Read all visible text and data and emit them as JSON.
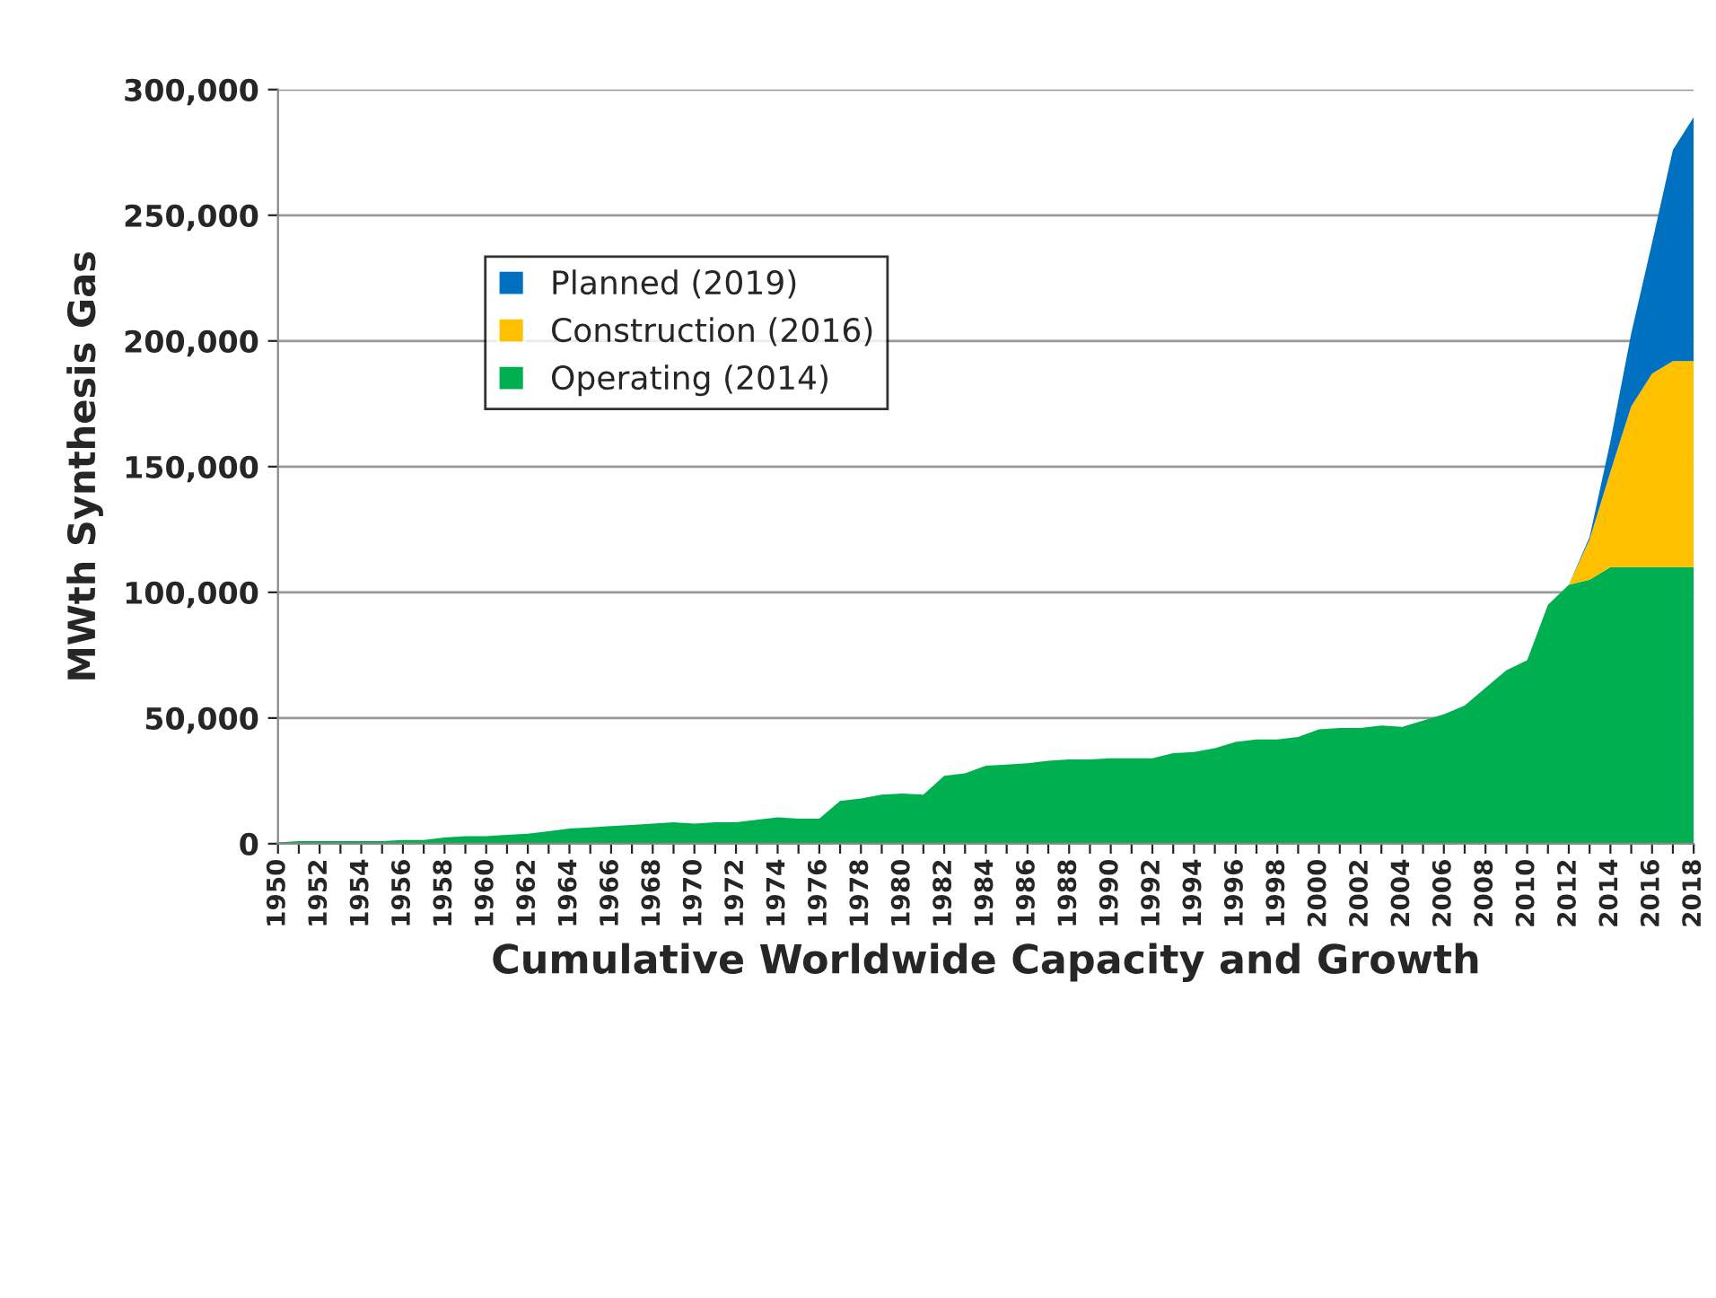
{
  "chart_data": {
    "type": "area",
    "stacked": true,
    "ylabel": "MWth Synthesis Gas",
    "xlabel": "Cumulative Worldwide Capacity and Growth",
    "categories": [
      "1950",
      null,
      "1952",
      null,
      "1954",
      null,
      "1956",
      null,
      "1958",
      null,
      "1960",
      null,
      "1962",
      null,
      "1964",
      null,
      "1966",
      null,
      "1968",
      null,
      "1970",
      null,
      "1972",
      null,
      "1974",
      null,
      "1976",
      null,
      "1978",
      null,
      "1980",
      null,
      "1982",
      null,
      "1984",
      null,
      "1986",
      null,
      "1988",
      null,
      "1990",
      null,
      "1992",
      null,
      "1994",
      null,
      "1996",
      null,
      "1998",
      null,
      "2000",
      null,
      "2002",
      null,
      "2004",
      null,
      "2006",
      null,
      "2008",
      null,
      "2010",
      null,
      "2012",
      null,
      "2014",
      null,
      "2016",
      null,
      "2018"
    ],
    "series": [
      {
        "name": "Operating (2014)",
        "color": "#00b050",
        "values": [
          500,
          1000,
          1000,
          1000,
          1000,
          1000,
          1500,
          1500,
          2500,
          3000,
          3000,
          3500,
          4000,
          5000,
          6000,
          6500,
          7000,
          7500,
          8000,
          8500,
          8000,
          8500,
          8500,
          9500,
          10500,
          10000,
          10000,
          17000,
          18000,
          19500,
          20000,
          19500,
          27000,
          28000,
          31000,
          31500,
          32000,
          33000,
          33500,
          33500,
          34000,
          34000,
          34000,
          36000,
          36500,
          38000,
          40500,
          41500,
          41500,
          42500,
          45500,
          46000,
          46000,
          47000,
          46500,
          49000,
          51500,
          55000,
          62000,
          69000,
          73000,
          95000,
          103000,
          105000,
          110000,
          110000,
          110000,
          110000,
          110000
        ]
      },
      {
        "name": "Construction (2016)",
        "color": "#ffc000",
        "values": [
          0,
          0,
          0,
          0,
          0,
          0,
          0,
          0,
          0,
          0,
          0,
          0,
          0,
          0,
          0,
          0,
          0,
          0,
          0,
          0,
          0,
          0,
          0,
          0,
          0,
          0,
          0,
          0,
          0,
          0,
          0,
          0,
          0,
          0,
          0,
          0,
          0,
          0,
          0,
          0,
          0,
          0,
          0,
          0,
          0,
          0,
          0,
          0,
          0,
          0,
          0,
          0,
          0,
          0,
          0,
          0,
          0,
          0,
          0,
          0,
          0,
          0,
          0,
          16000,
          38000,
          64000,
          77000,
          82000,
          82000
        ]
      },
      {
        "name": "Planned (2019)",
        "color": "#0070c0",
        "values": [
          0,
          0,
          0,
          0,
          0,
          0,
          0,
          0,
          0,
          0,
          0,
          0,
          0,
          0,
          0,
          0,
          0,
          0,
          0,
          0,
          0,
          0,
          0,
          0,
          0,
          0,
          0,
          0,
          0,
          0,
          0,
          0,
          0,
          0,
          0,
          0,
          0,
          0,
          0,
          0,
          0,
          0,
          0,
          0,
          0,
          0,
          0,
          0,
          0,
          0,
          0,
          0,
          0,
          0,
          0,
          0,
          0,
          0,
          0,
          0,
          0,
          0,
          0,
          1000,
          12000,
          29000,
          52000,
          84000,
          97000
        ]
      }
    ],
    "ylim": [
      0,
      300000
    ],
    "yticks": [
      {
        "value": 0,
        "label": "0"
      },
      {
        "value": 50000,
        "label": "50,000"
      },
      {
        "value": 100000,
        "label": "100,000"
      },
      {
        "value": 150000,
        "label": "150,000"
      },
      {
        "value": 200000,
        "label": "200,000"
      },
      {
        "value": 250000,
        "label": "250,000"
      },
      {
        "value": 300000,
        "label": "300,000"
      }
    ],
    "grid": "y",
    "legend": "top left"
  }
}
